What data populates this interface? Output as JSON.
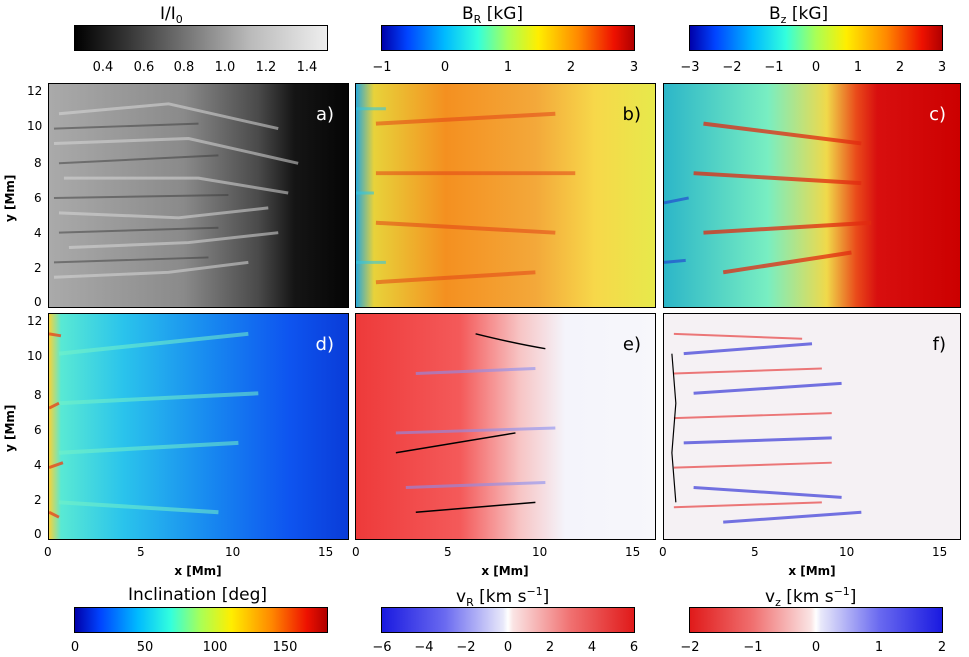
{
  "colorbars_top": [
    {
      "title_main": "I/I",
      "title_sub": "0",
      "title_sup": "",
      "title_unit": "",
      "ticks": [
        "0.4",
        "0.6",
        "0.8",
        "1.0",
        "1.2",
        "1.4"
      ]
    },
    {
      "title_main": "B",
      "title_sub": "R",
      "title_sup": "",
      "title_unit": "[kG]",
      "ticks": [
        "−1",
        "0",
        "1",
        "2",
        "3"
      ]
    },
    {
      "title_main": "B",
      "title_sub": "z",
      "title_sup": "",
      "title_unit": "[kG]",
      "ticks": [
        "−3",
        "−2",
        "−1",
        "0",
        "1",
        "2",
        "3"
      ]
    }
  ],
  "colorbars_bottom": [
    {
      "title_main": "Inclination",
      "title_sub": "",
      "title_unit": "[deg]",
      "ticks": [
        "0",
        "50",
        "100",
        "150"
      ]
    },
    {
      "title_main": "v",
      "title_sub": "R",
      "title_unit": "[km s",
      "title_sup": "−1",
      "title_close": "]",
      "ticks": [
        "−6",
        "−4",
        "−2",
        "0",
        "2",
        "4",
        "6"
      ]
    },
    {
      "title_main": "v",
      "title_sub": "z",
      "title_unit": "[km s",
      "title_sup": "−1",
      "title_close": "]",
      "ticks": [
        "−2",
        "−1",
        "0",
        "1",
        "2"
      ]
    }
  ],
  "panels": [
    {
      "label": "a)"
    },
    {
      "label": "b)"
    },
    {
      "label": "c)"
    },
    {
      "label": "d)"
    },
    {
      "label": "e)"
    },
    {
      "label": "f)"
    }
  ],
  "axes": {
    "y_title": "y [Mm]",
    "x_title": "x [Mm]",
    "y_ticks": [
      "0",
      "2",
      "4",
      "6",
      "8",
      "10",
      "12"
    ],
    "x_ticks": [
      "0",
      "5",
      "10",
      "15"
    ]
  }
}
